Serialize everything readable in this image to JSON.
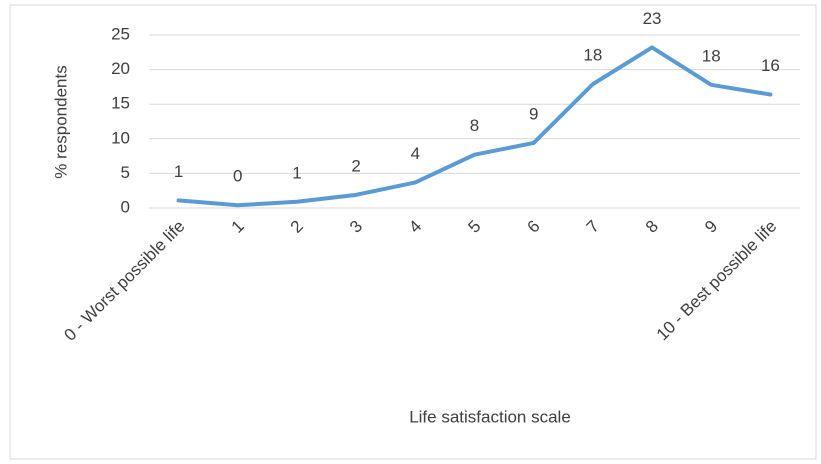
{
  "chart_data": {
    "type": "line",
    "y_label": "% respondents",
    "x_label": "Life satisfaction scale",
    "categories": [
      "0 - Worst possible life",
      "1",
      "2",
      "3",
      "4",
      "5",
      "6",
      "7",
      "8",
      "9",
      "10 - Best possible life"
    ],
    "series": [
      {
        "name": "% respondents",
        "color": "#5b9bd5",
        "values": [
          1.1,
          0.4,
          0.9,
          1.9,
          3.7,
          7.7,
          9.4,
          17.9,
          23.2,
          17.8,
          16.4
        ],
        "value_labels": [
          "1",
          "0",
          "1",
          "2",
          "4",
          "8",
          "9",
          "18",
          "23",
          "18",
          "16"
        ]
      }
    ],
    "ylim": [
      0,
      25
    ],
    "yticks": [
      0,
      5,
      10,
      15,
      20,
      25
    ],
    "grid": true
  }
}
